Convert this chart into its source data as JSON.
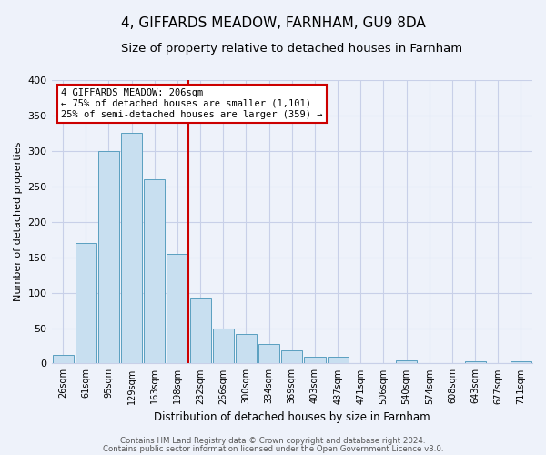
{
  "title": "4, GIFFARDS MEADOW, FARNHAM, GU9 8DA",
  "subtitle": "Size of property relative to detached houses in Farnham",
  "xlabel": "Distribution of detached houses by size in Farnham",
  "ylabel": "Number of detached properties",
  "bar_labels": [
    "26sqm",
    "61sqm",
    "95sqm",
    "129sqm",
    "163sqm",
    "198sqm",
    "232sqm",
    "266sqm",
    "300sqm",
    "334sqm",
    "369sqm",
    "403sqm",
    "437sqm",
    "471sqm",
    "506sqm",
    "540sqm",
    "574sqm",
    "608sqm",
    "643sqm",
    "677sqm",
    "711sqm"
  ],
  "bar_values": [
    12,
    170,
    300,
    325,
    260,
    155,
    92,
    50,
    42,
    28,
    18,
    10,
    9,
    0,
    0,
    4,
    0,
    0,
    3,
    0,
    3
  ],
  "bar_color": "#c8dff0",
  "bar_edge_color": "#5a9fc0",
  "marker_line_color": "#cc0000",
  "annotation_title": "4 GIFFARDS MEADOW: 206sqm",
  "annotation_line1": "← 75% of detached houses are smaller (1,101)",
  "annotation_line2": "25% of semi-detached houses are larger (359) →",
  "annotation_box_color": "#ffffff",
  "annotation_box_edge": "#cc0000",
  "ylim": [
    0,
    400
  ],
  "yticks": [
    0,
    50,
    100,
    150,
    200,
    250,
    300,
    350,
    400
  ],
  "footnote1": "Contains HM Land Registry data © Crown copyright and database right 2024.",
  "footnote2": "Contains public sector information licensed under the Open Government Licence v3.0.",
  "background_color": "#eef2fa",
  "grid_color": "#c8d0e8",
  "title_fontsize": 11,
  "subtitle_fontsize": 9.5,
  "ylabel_text": "Number of detached properties"
}
